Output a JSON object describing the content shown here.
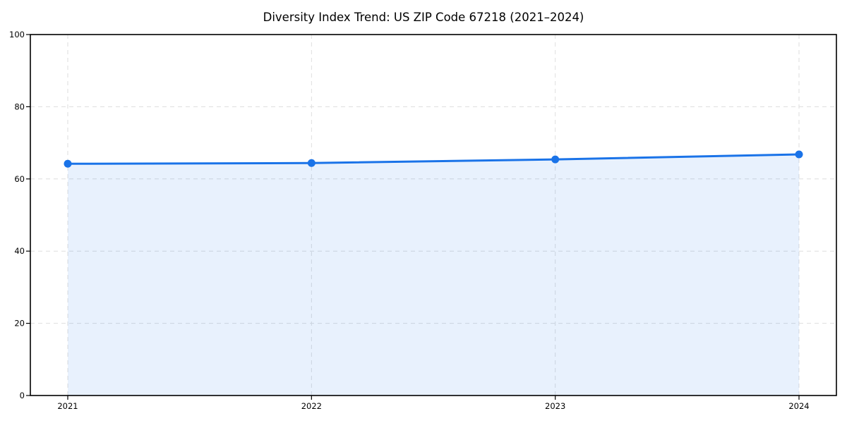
{
  "page": {
    "background": "#ffffff"
  },
  "chart_data": {
    "type": "area",
    "title": "Diversity Index Trend: US ZIP Code 67218 (2021–2024)",
    "categories": [
      "2021",
      "2022",
      "2023",
      "2024"
    ],
    "values": [
      64.2,
      64.4,
      65.4,
      66.8
    ],
    "xlabel": "",
    "ylabel": "",
    "ylim": [
      0,
      100
    ],
    "yticks": [
      0,
      20,
      40,
      60,
      80,
      100
    ],
    "xtick_labels": [
      "2021",
      "2022",
      "2023",
      "2024"
    ],
    "grid": true,
    "grid_style": "dashed",
    "legend": "none",
    "marker": "circle",
    "colors": {
      "line": "#1a73e8",
      "marker": "#1a73e8",
      "fill": "#1a73e8",
      "fill_opacity": 0.1,
      "grid": "#dedede",
      "spine": "#000000",
      "tick": "#000000",
      "text": "#000000",
      "background": "#ffffff"
    }
  }
}
